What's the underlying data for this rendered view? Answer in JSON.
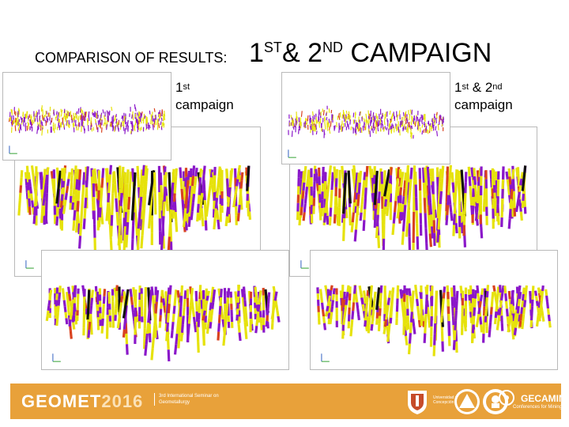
{
  "title": {
    "lead": "COMPARISON OF RESULTS:",
    "n1": "1",
    "sup1": "ST",
    "amp": "& ",
    "n2": "2",
    "sup2": "ND",
    "rest": " CAMPAIGN"
  },
  "captions": {
    "left": {
      "num": "1",
      "sup": "st",
      "word": "campaign"
    },
    "right": {
      "num1": "1",
      "sup1": "st",
      "amp": " & ",
      "num2": "2",
      "sup2": "nd",
      "word": "campaign"
    }
  },
  "footer": {
    "brand": "GEOMET",
    "year": "2016",
    "tagline": "3rd International Seminar on Geometallurgy",
    "university_text": "Universidad de Concepción",
    "partner": "GECAMIN",
    "partner_tagline": "Conferences for Mining"
  },
  "colors": {
    "footer": "#e8a13a",
    "drill_yellow": "#e6e20c",
    "drill_purple": "#8a17c9",
    "drill_red": "#d9421f",
    "frame_border": "#b9b9b9"
  }
}
